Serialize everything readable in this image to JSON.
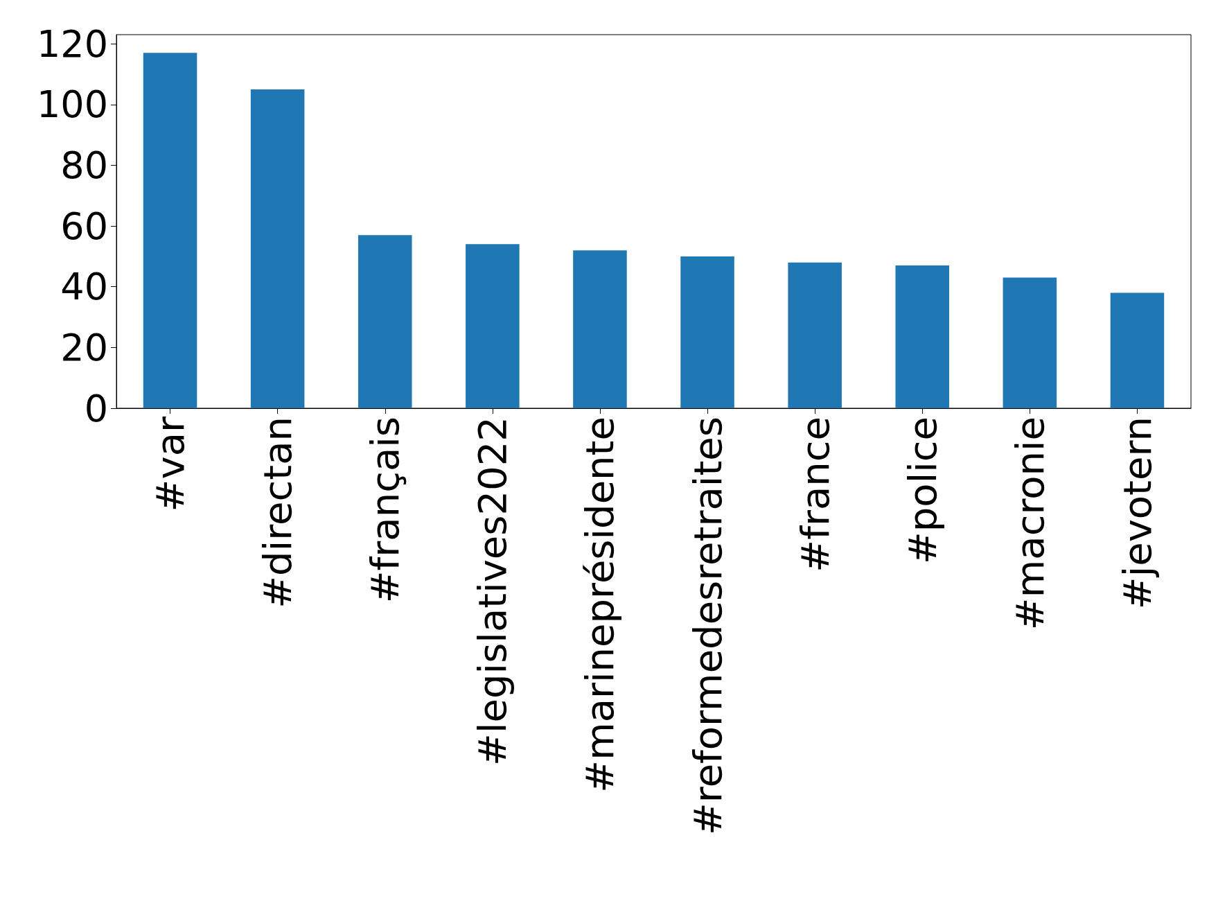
{
  "chart_data": {
    "type": "bar",
    "categories": [
      "#var",
      "#directan",
      "#français",
      "#legislatives2022",
      "#marineprésidente",
      "#reformedesretraites",
      "#france",
      "#police",
      "#macronie",
      "#jevotern"
    ],
    "values": [
      117,
      105,
      57,
      54,
      52,
      50,
      48,
      47,
      43,
      38
    ],
    "color": "#1f77b4",
    "ylim": [
      0,
      123
    ],
    "yticks": [
      0,
      20,
      40,
      60,
      80,
      100,
      120
    ],
    "grid": false
  }
}
